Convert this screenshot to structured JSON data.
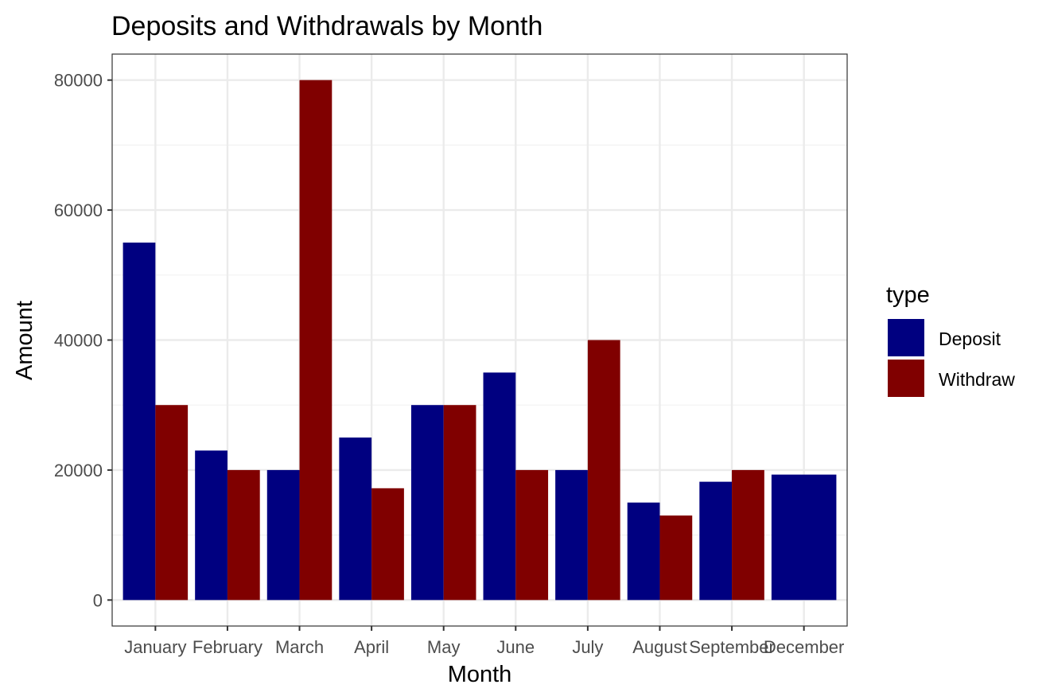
{
  "chart_data": {
    "type": "bar",
    "title": "Deposits and Withdrawals by Month",
    "xlabel": "Month",
    "ylabel": "Amount",
    "categories": [
      "January",
      "February",
      "March",
      "April",
      "May",
      "June",
      "July",
      "August",
      "September",
      "December"
    ],
    "series": [
      {
        "name": "Deposit",
        "color": "#000080",
        "values": [
          55000,
          23000,
          20000,
          25000,
          30000,
          35000,
          20000,
          15000,
          18200,
          19300
        ]
      },
      {
        "name": "Withdraw",
        "color": "#800000",
        "values": [
          30000,
          20000,
          80000,
          17200,
          30000,
          20000,
          40000,
          13000,
          20000,
          null
        ]
      }
    ],
    "ylim": [
      -4000,
      84000
    ],
    "yticks": [
      0,
      20000,
      40000,
      60000,
      80000
    ],
    "ytick_labels": [
      "0",
      "20000",
      "40000",
      "60000",
      "80000"
    ],
    "legend": {
      "title": "type",
      "position": "right"
    },
    "grid": true,
    "theme": "bw"
  }
}
